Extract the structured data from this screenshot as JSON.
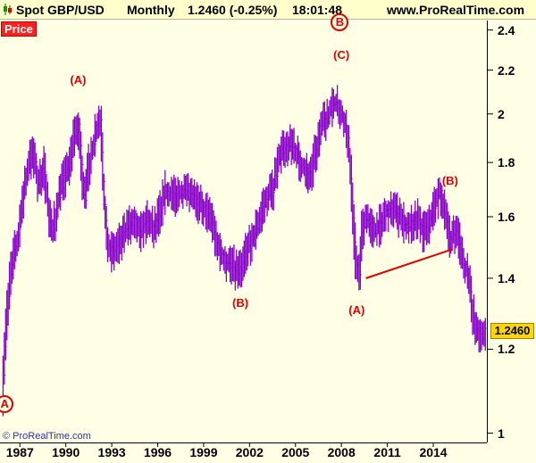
{
  "header": {
    "symbol": "Spot GBP/USD",
    "period": "Monthly",
    "last": "1.2460 (-0.25%)",
    "time": "18:01:48",
    "site": "www.ProRealTime.com"
  },
  "panel_label": "Price",
  "last_price_label": "1.2460",
  "copyright": "© ProRealTime.com",
  "colors": {
    "price_bars": "#8800cc",
    "annotations": "#e00000",
    "background": "#ffffe6",
    "last_badge": "#ffd700"
  },
  "chart_data": {
    "type": "line",
    "title": "Spot GBP/USD",
    "xlabel": "",
    "ylabel": "",
    "x_ticks": [
      "1987",
      "1990",
      "1993",
      "1996",
      "1999",
      "2002",
      "2005",
      "2008",
      "2011",
      "2014"
    ],
    "y_ticks": [
      "2.4",
      "2.2",
      "2",
      "1.8",
      "1.6",
      "1.4",
      "1.2",
      "1"
    ],
    "y_scale": "log",
    "ylim": [
      0.98,
      2.45
    ],
    "xlim": [
      1985.7,
      2017.5
    ],
    "series": [
      {
        "x": [
          1985.9,
          1986.0,
          1986.2,
          1986.5,
          1986.8,
          1987.0,
          1987.3,
          1987.6,
          1987.9,
          1988.1,
          1988.3,
          1988.6,
          1988.9,
          1989.1,
          1989.4,
          1989.7,
          1990.0,
          1990.3,
          1990.6,
          1990.9,
          1991.1,
          1991.3,
          1991.5,
          1991.8,
          1992.0,
          1992.3,
          1992.5,
          1992.7,
          1992.9,
          1993.1,
          1993.4,
          1993.7,
          1994.0,
          1994.3,
          1994.6,
          1995.0,
          1995.4,
          1995.8,
          1996.2,
          1996.6,
          1997.0,
          1997.5,
          1998.0,
          1998.5,
          1999.0,
          1999.5,
          2000.0,
          2000.5,
          2001.0,
          2001.3,
          2001.6,
          2002.0,
          2002.4,
          2002.8,
          2003.2,
          2003.6,
          2004.0,
          2004.4,
          2004.8,
          2005.2,
          2005.6,
          2006.0,
          2006.4,
          2006.8,
          2007.2,
          2007.6,
          2007.9,
          2008.2,
          2008.5,
          2008.8,
          2009.0,
          2009.2,
          2009.4,
          2009.7,
          2010.0,
          2010.3,
          2010.6,
          2011.0,
          2011.4,
          2011.8,
          2012.2,
          2012.6,
          2013.0,
          2013.4,
          2013.8,
          2014.2,
          2014.5,
          2014.8,
          2015.2,
          2015.6,
          2016.0,
          2016.3,
          2016.6,
          2016.9,
          2017.2,
          2017.4
        ],
        "values": [
          1.05,
          1.15,
          1.3,
          1.45,
          1.5,
          1.55,
          1.7,
          1.78,
          1.85,
          1.78,
          1.7,
          1.8,
          1.62,
          1.55,
          1.6,
          1.7,
          1.75,
          1.8,
          1.9,
          1.95,
          1.75,
          1.65,
          1.78,
          1.85,
          1.92,
          1.98,
          1.7,
          1.55,
          1.5,
          1.48,
          1.5,
          1.53,
          1.55,
          1.58,
          1.6,
          1.55,
          1.6,
          1.56,
          1.62,
          1.7,
          1.67,
          1.69,
          1.68,
          1.66,
          1.64,
          1.6,
          1.5,
          1.45,
          1.44,
          1.42,
          1.45,
          1.5,
          1.55,
          1.6,
          1.68,
          1.7,
          1.82,
          1.87,
          1.88,
          1.82,
          1.78,
          1.75,
          1.85,
          1.95,
          2.0,
          2.05,
          2.02,
          1.98,
          1.9,
          1.6,
          1.45,
          1.4,
          1.55,
          1.6,
          1.57,
          1.55,
          1.58,
          1.62,
          1.64,
          1.6,
          1.57,
          1.58,
          1.6,
          1.55,
          1.58,
          1.65,
          1.7,
          1.6,
          1.52,
          1.55,
          1.45,
          1.42,
          1.3,
          1.25,
          1.24,
          1.246
        ]
      }
    ],
    "annotations": [
      {
        "text": "(A)",
        "x": 1990.8,
        "y": 2.15
      },
      {
        "text": "(B)",
        "x": 2001.4,
        "y": 1.325
      },
      {
        "text": "(C)",
        "x": 2008.0,
        "y": 2.27
      },
      {
        "text": "(A)",
        "x": 2009.0,
        "y": 1.305
      },
      {
        "text": "(B)",
        "x": 2015.1,
        "y": 1.73
      }
    ],
    "circled_labels": [
      {
        "text": "A",
        "x": 1986.0,
        "y": 1.065
      },
      {
        "text": "B",
        "x": 2007.9,
        "y": 2.44
      }
    ],
    "trendline": {
      "x": [
        2009.6,
        2015.2
      ],
      "y": [
        1.4,
        1.49
      ]
    }
  }
}
